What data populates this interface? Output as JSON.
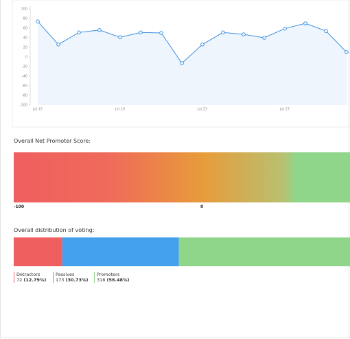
{
  "chart_data": {
    "type": "line",
    "categories": [
      "Jul 15",
      null,
      null,
      null,
      "Jul 19",
      null,
      null,
      null,
      "Jul 23",
      null,
      null,
      null,
      "Jul 27",
      null,
      null,
      null
    ],
    "series": [
      {
        "color": "#3d8fe0",
        "values": [
          74,
          26,
          51,
          56,
          41,
          51,
          50,
          -13,
          26,
          51,
          47,
          40,
          59,
          70,
          54,
          10
        ]
      }
    ],
    "ylim": [
      -100,
      100
    ],
    "yticks": [
      -100,
      -80,
      -60,
      -40,
      -20,
      0,
      20,
      40,
      60,
      80,
      100
    ],
    "area_color": "#eef5fd"
  },
  "nps": {
    "title": "Overall Net Promoter Score:",
    "min_label": "-100",
    "mid_label": "0"
  },
  "distribution": {
    "title": "Overall distribution of voting:",
    "items": [
      {
        "name": "Detractors",
        "count": 72,
        "share": "(12.79%)",
        "color": "#ef5f5f"
      },
      {
        "name": "Passives",
        "count": 173,
        "share": "(30.73%)",
        "color": "#42a0ec"
      },
      {
        "name": "Promoters",
        "count": 318,
        "share": "(56.48%)",
        "color": "#8fd68a"
      }
    ]
  }
}
